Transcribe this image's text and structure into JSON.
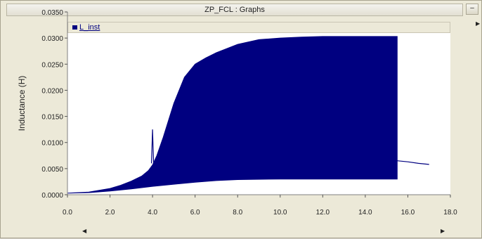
{
  "window": {
    "title": "ZP_FCL : Graphs",
    "minimize_label": "–"
  },
  "icons": {
    "minimize": "minimize-icon",
    "right_arrow": "right-arrow-icon",
    "scroll_left": "scroll-left-icon",
    "scroll_right": "scroll-right-icon"
  },
  "colors": {
    "series": "#000080",
    "plot_bg": "#ffffff",
    "panel_bg": "#ece9d8"
  },
  "chart_data": {
    "type": "area",
    "title": "",
    "xlabel": "",
    "ylabel": "Inductance (H)",
    "xlim": [
      0.0,
      18.0
    ],
    "ylim": [
      0.0,
      0.035
    ],
    "x_ticks": [
      "0.0",
      "2.0",
      "4.0",
      "6.0",
      "8.0",
      "10.0",
      "12.0",
      "14.0",
      "16.0",
      "18.0"
    ],
    "y_ticks": [
      "0.0000",
      "0.0050",
      "0.0100",
      "0.0150",
      "0.0200",
      "0.0250",
      "0.0300",
      "0.0350"
    ],
    "legend": {
      "position": "top-left",
      "entries": [
        "L_inst"
      ]
    },
    "series": [
      {
        "name": "L_inst",
        "color": "#000080",
        "upper_envelope": {
          "x": [
            0.0,
            1.0,
            2.0,
            2.5,
            3.0,
            3.5,
            3.8,
            4.0,
            4.2,
            4.5,
            5.0,
            5.5,
            6.0,
            6.5,
            7.0,
            8.0,
            9.0,
            10.0,
            11.0,
            12.0,
            13.0,
            14.0,
            15.5
          ],
          "y": [
            0.0003,
            0.0005,
            0.0012,
            0.0018,
            0.0026,
            0.0036,
            0.0046,
            0.0057,
            0.0075,
            0.011,
            0.0175,
            0.0225,
            0.025,
            0.0262,
            0.0272,
            0.0288,
            0.0297,
            0.03,
            0.0302,
            0.0303,
            0.0303,
            0.0303,
            0.0303
          ]
        },
        "lower_envelope": {
          "x": [
            0.0,
            1.0,
            2.0,
            3.0,
            4.0,
            5.0,
            6.0,
            7.0,
            8.0,
            10.0,
            12.0,
            14.0,
            15.5
          ],
          "y": [
            0.0003,
            0.0004,
            0.0007,
            0.0011,
            0.0016,
            0.002,
            0.0024,
            0.0027,
            0.0029,
            0.003,
            0.003,
            0.003,
            0.003
          ]
        },
        "spike": {
          "x": [
            3.95,
            4.0,
            4.05
          ],
          "y": [
            0.006,
            0.0125,
            0.006
          ]
        },
        "tail": {
          "x": [
            15.5,
            16.0,
            16.5,
            17.0
          ],
          "y": [
            0.0065,
            0.0063,
            0.006,
            0.0058
          ]
        }
      }
    ],
    "grid": false
  }
}
